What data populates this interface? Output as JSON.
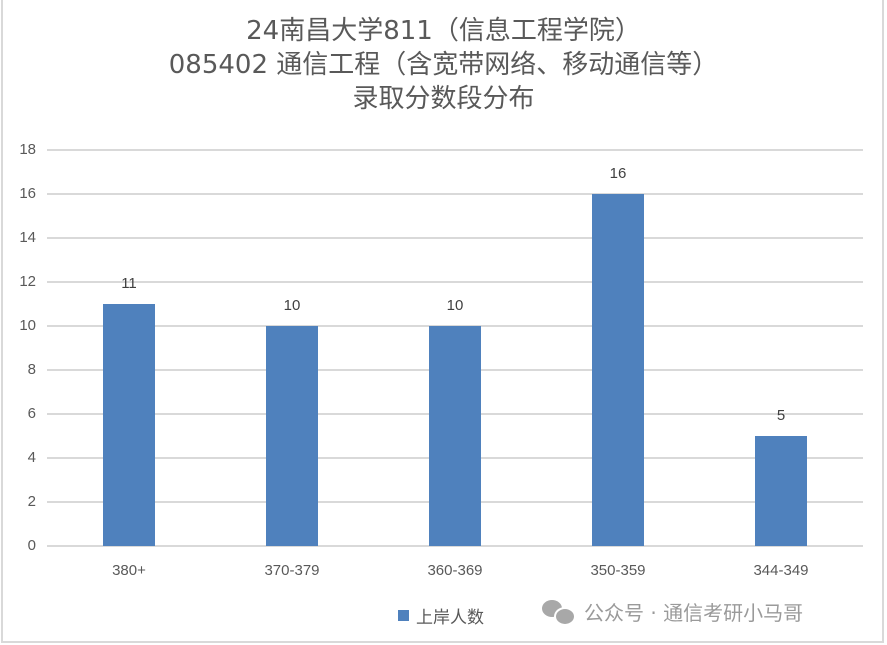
{
  "chart_data": {
    "type": "bar",
    "title": "24南昌大学811（信息工程学院） 085402 通信工程（含宽带网络、移动通信等） 录取分数段分布",
    "title_lines": [
      "24南昌大学811（信息工程学院）",
      "085402 通信工程（含宽带网络、移动通信等）",
      "录取分数段分布"
    ],
    "categories": [
      "380+",
      "370-379",
      "360-369",
      "350-359",
      "344-349"
    ],
    "series": [
      {
        "name": "上岸人数",
        "values": [
          11,
          10,
          10,
          16,
          5
        ],
        "color": "#4f81bd"
      }
    ],
    "values": [
      11,
      10,
      10,
      16,
      5
    ],
    "data_labels": [
      "11",
      "10",
      "10",
      "16",
      "5"
    ],
    "xlabel": "",
    "ylabel": "",
    "ylim": [
      0,
      18
    ],
    "yticks": [
      "0",
      "2",
      "4",
      "6",
      "8",
      "10",
      "12",
      "14",
      "16",
      "18"
    ],
    "grid": true,
    "legend_position": "bottom"
  },
  "legend": {
    "label": "上岸人数",
    "color": "#4f81bd"
  },
  "watermark": {
    "icon": "wechat-icon",
    "text": "公众号 · 通信考研小马哥"
  }
}
